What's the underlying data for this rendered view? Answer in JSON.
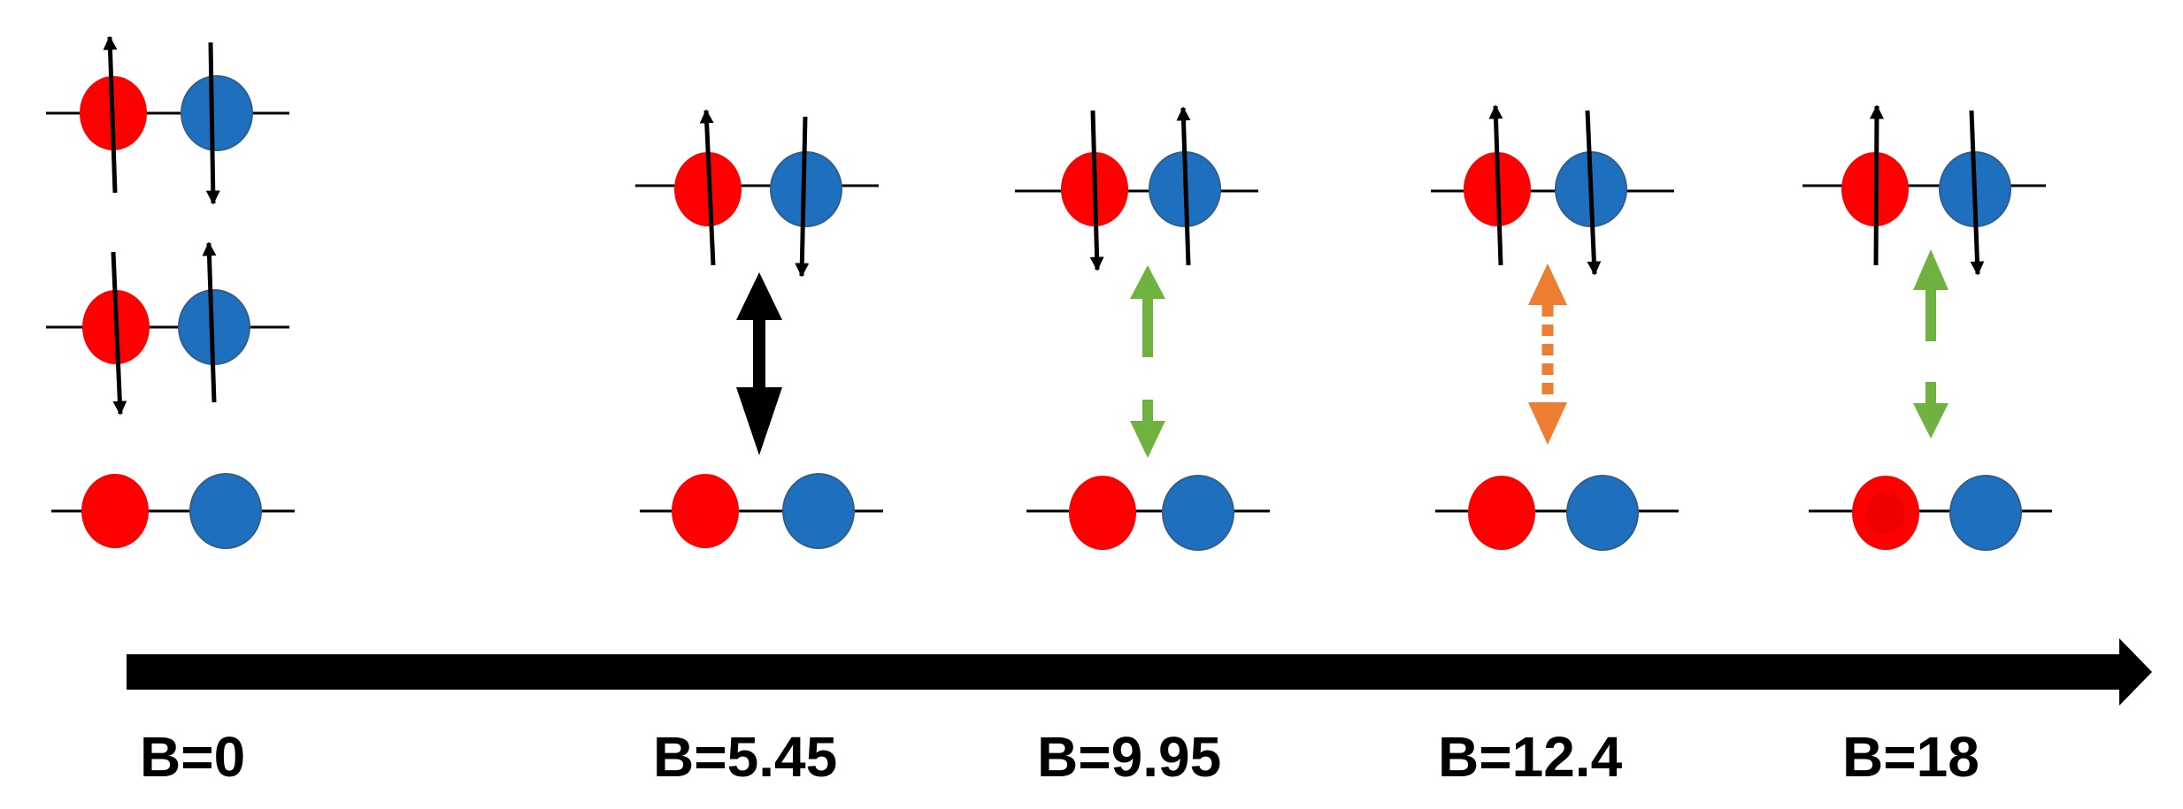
{
  "colors": {
    "red_dot": "#ff0000",
    "blue_dot": "#1f6fbf",
    "level_line": "#000000",
    "arrow": "#000000",
    "green_transition": "#6fb23f",
    "orange_transition": "#ed7d31"
  },
  "axis": {
    "direction": "increasing-right",
    "labels": [
      "B=0",
      "B=5.45",
      "B=9.95",
      "B=12.4",
      "B=18"
    ]
  },
  "columns": [
    {
      "label": "B=0",
      "levels": [
        {
          "red_spin": "up",
          "blue_spin": "down"
        },
        {
          "red_spin": "down",
          "blue_spin": "up"
        },
        {
          "red_spin": "none",
          "blue_spin": "none"
        }
      ],
      "transition": null
    },
    {
      "label": "B=5.45",
      "levels": [
        {
          "red_spin": "up",
          "blue_spin": "down"
        },
        {
          "red_spin": "none",
          "blue_spin": "none"
        }
      ],
      "transition": {
        "style": "solid",
        "color": "black"
      }
    },
    {
      "label": "B=9.95",
      "levels": [
        {
          "red_spin": "down",
          "blue_spin": "up"
        },
        {
          "red_spin": "none",
          "blue_spin": "none"
        }
      ],
      "transition": {
        "style": "broken",
        "color": "green"
      }
    },
    {
      "label": "B=12.4",
      "levels": [
        {
          "red_spin": "up",
          "blue_spin": "down"
        },
        {
          "red_spin": "none",
          "blue_spin": "none"
        }
      ],
      "transition": {
        "style": "dotted",
        "color": "orange"
      }
    },
    {
      "label": "B=18",
      "levels": [
        {
          "red_spin": "up",
          "blue_spin": "down"
        },
        {
          "red_spin": "none",
          "blue_spin": "none"
        }
      ],
      "transition": {
        "style": "broken",
        "color": "green"
      }
    }
  ]
}
